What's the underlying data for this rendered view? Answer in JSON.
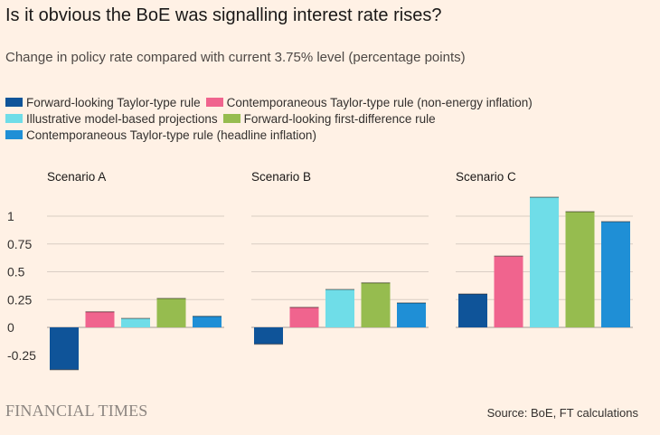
{
  "title": "Is it obvious the BoE was signalling interest rate rises?",
  "subtitle": "Change in policy rate compared with current 3.75% level (percentage points)",
  "source": "Source: BoE, FT calculations",
  "brand": "FINANCIAL TIMES",
  "chart_data": {
    "type": "bar",
    "y_tick_labels": [
      "-0.25",
      "0",
      "0.25",
      "0.5",
      "0.75",
      "1"
    ],
    "y_ticks": [
      -0.25,
      0,
      0.25,
      0.5,
      0.75,
      1
    ],
    "ylim": [
      -0.4,
      1.17
    ],
    "grid": true,
    "legend_position": "top",
    "series": [
      {
        "name": "Forward-looking Taylor-type rule",
        "color": "#0f5499"
      },
      {
        "name": "Contemporaneous Taylor-type rule (non-energy inflation)",
        "color": "#f0648e"
      },
      {
        "name": "Illustrative model-based projections",
        "color": "#6fdde8"
      },
      {
        "name": "Forward-looking first-difference rule",
        "color": "#96bc4f"
      },
      {
        "name": "Contemporaneous Taylor-type rule (headline inflation)",
        "color": "#1f8fd6"
      }
    ],
    "legend_rows": [
      [
        0,
        1
      ],
      [
        2,
        3
      ],
      [
        4
      ]
    ],
    "panels": [
      {
        "title": "Scenario A",
        "values": [
          -0.38,
          0.14,
          0.08,
          0.26,
          0.1
        ]
      },
      {
        "title": "Scenario B",
        "values": [
          -0.15,
          0.18,
          0.34,
          0.4,
          0.22
        ]
      },
      {
        "title": "Scenario C",
        "values": [
          0.3,
          0.64,
          1.17,
          1.04,
          0.95
        ]
      }
    ]
  }
}
